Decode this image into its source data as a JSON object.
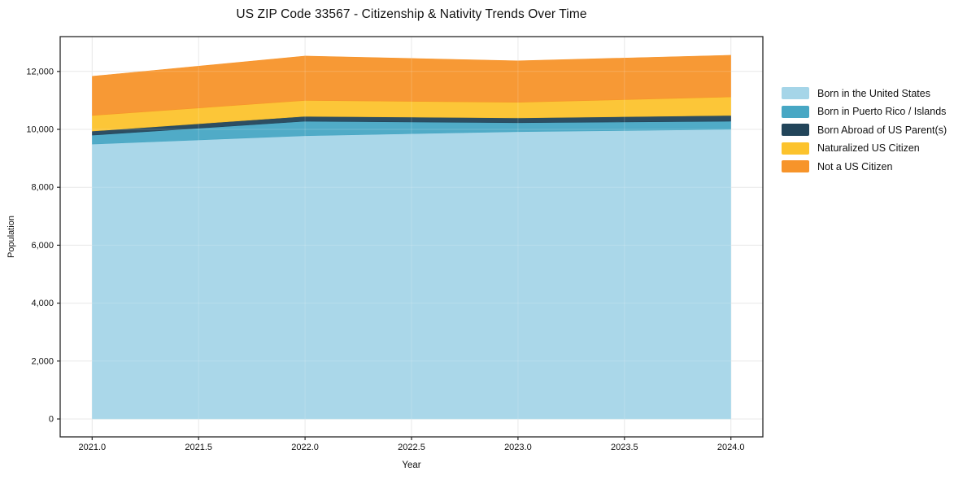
{
  "chart_data": {
    "type": "area",
    "stacked": true,
    "title": "US ZIP Code 33567 - Citizenship & Nativity Trends Over Time",
    "xlabel": "Year",
    "ylabel": "Population",
    "x": [
      2021.0,
      2022.0,
      2023.0,
      2024.0
    ],
    "series": [
      {
        "name": "Born in the United States",
        "color": "#a5d5e8",
        "values": [
          9490,
          9780,
          9920,
          10000
        ]
      },
      {
        "name": "Born in Puerto Rico / Islands",
        "color": "#47a7c4",
        "values": [
          310,
          500,
          310,
          280
        ]
      },
      {
        "name": "Born Abroad of US Parent(s)",
        "color": "#22455a",
        "values": [
          140,
          170,
          165,
          200
        ]
      },
      {
        "name": "Naturalized US Citizen",
        "color": "#fcc32d",
        "values": [
          540,
          550,
          540,
          640
        ]
      },
      {
        "name": "Not a US Citizen",
        "color": "#f7942a",
        "values": [
          1350,
          1530,
          1430,
          1440
        ]
      }
    ],
    "stack_totals": [
      11830,
      12530,
      12365,
      12560
    ],
    "xlim": [
      2020.85,
      2024.15
    ],
    "ylim": [
      -618,
      13202
    ],
    "xticks": [
      2021.0,
      2021.5,
      2022.0,
      2022.5,
      2023.0,
      2023.5,
      2024.0
    ],
    "xtick_labels": [
      "2021.0",
      "2021.5",
      "2022.0",
      "2022.5",
      "2023.0",
      "2023.5",
      "2024.0"
    ],
    "yticks": [
      0,
      2000,
      4000,
      6000,
      8000,
      10000,
      12000
    ],
    "ytick_labels": [
      "0",
      "2,000",
      "4,000",
      "6,000",
      "8,000",
      "10,000",
      "12,000"
    ],
    "grid": true,
    "legend_position": "outside-right",
    "colors": {
      "spine": "#262626",
      "grid": "#e5e5e5",
      "text": "#111111",
      "background": "#ffffff"
    }
  }
}
